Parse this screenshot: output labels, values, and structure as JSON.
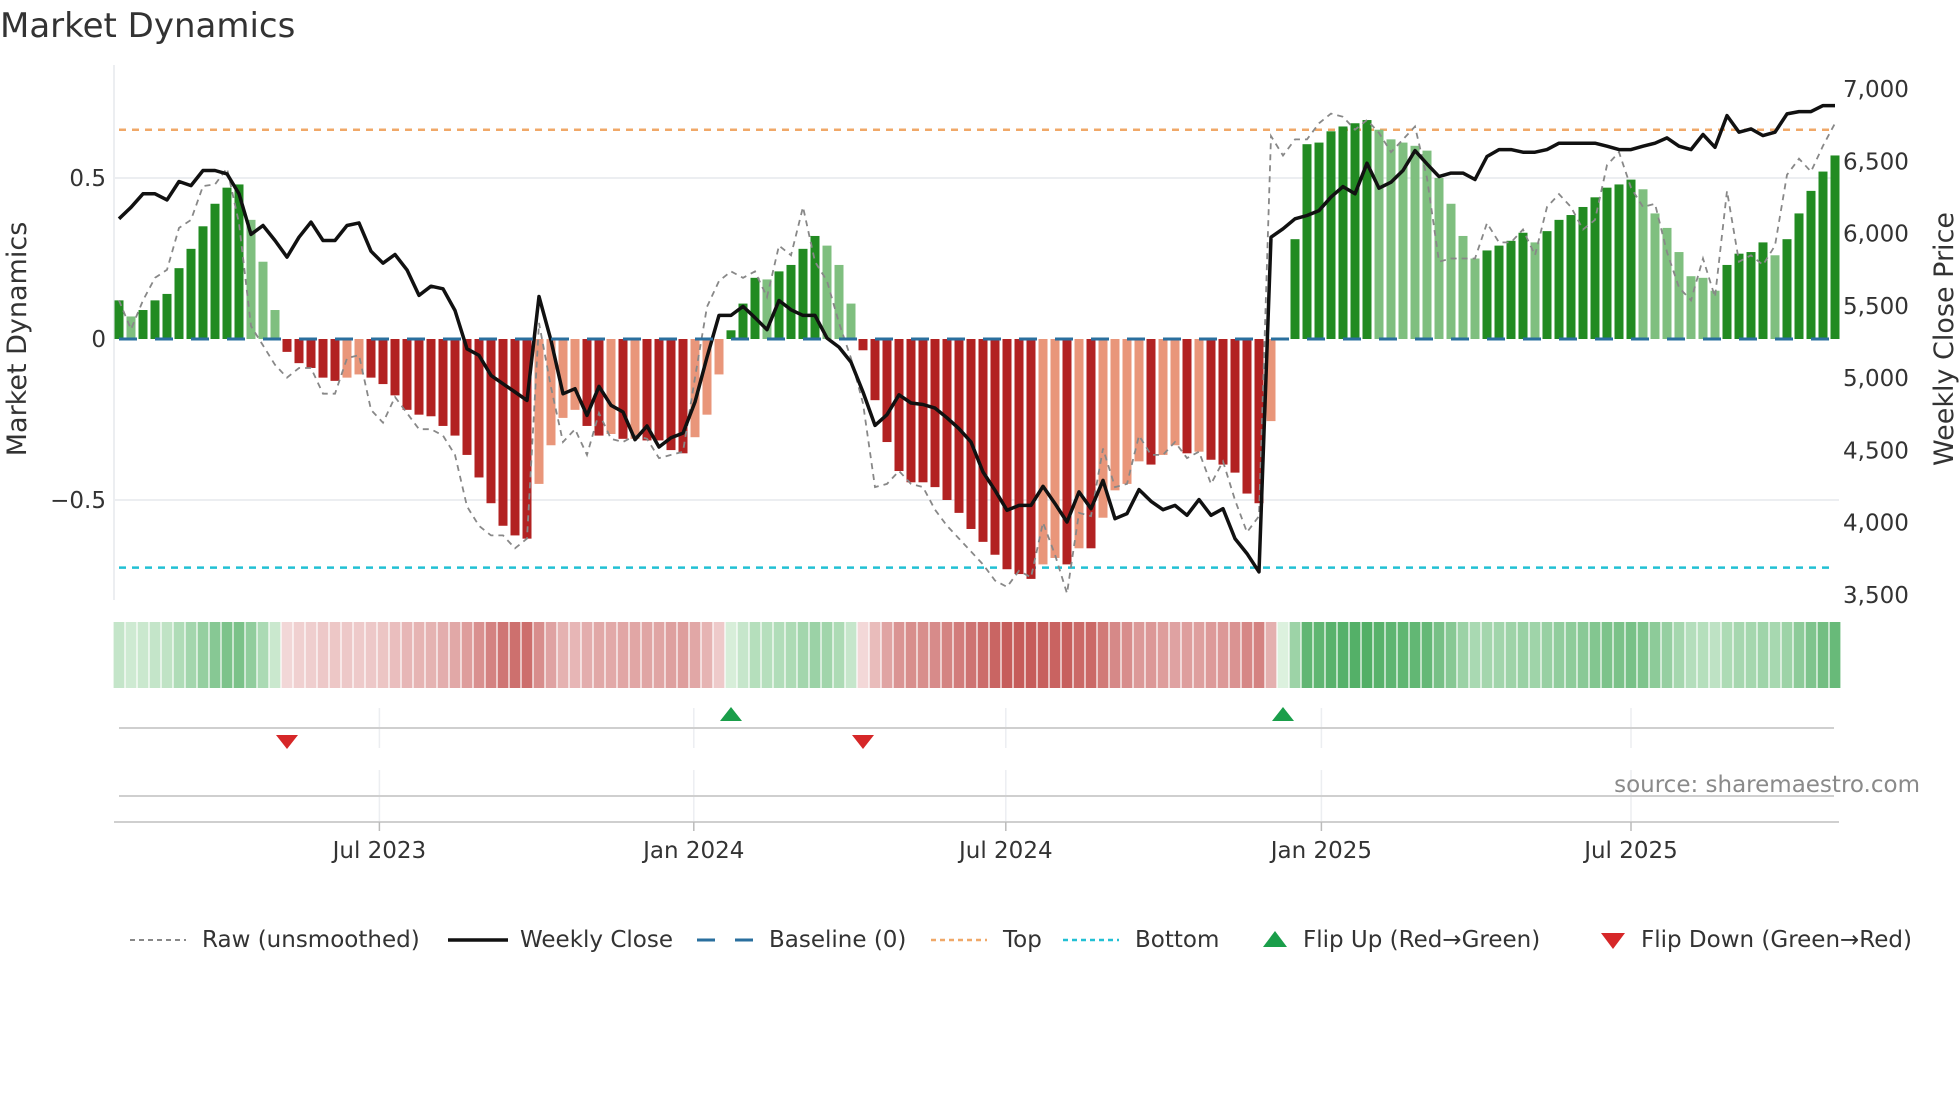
{
  "chart_data": {
    "type": "bar",
    "title": "Market Dynamics",
    "ylabel_left": "Market Dynamics",
    "ylabel_right": "Weekly Close Price",
    "ylim_left": [
      -0.8,
      0.8
    ],
    "ylim_right": [
      3500,
      7000
    ],
    "left_ticks": [
      {
        "v": 0.5,
        "label": "0.5"
      },
      {
        "v": 0,
        "label": "0"
      },
      {
        "v": -0.5,
        "label": "−0.5"
      }
    ],
    "right_ticks": [
      {
        "v": 7000,
        "label": "7,000"
      },
      {
        "v": 6500,
        "label": "6,500"
      },
      {
        "v": 6000,
        "label": "6,000"
      },
      {
        "v": 5500,
        "label": "5,500"
      },
      {
        "v": 5000,
        "label": "5,000"
      },
      {
        "v": 4500,
        "label": "4,500"
      },
      {
        "v": 4000,
        "label": "4,000"
      },
      {
        "v": 3500,
        "label": "3,500"
      }
    ],
    "x_ticks": [
      {
        "week": 21.7,
        "label": "Jul 2023"
      },
      {
        "week": 47.9,
        "label": "Jan 2024"
      },
      {
        "week": 73.9,
        "label": "Jul 2024"
      },
      {
        "week": 100.2,
        "label": "Jan 2025"
      },
      {
        "week": 126.0,
        "label": "Jul 2025"
      }
    ],
    "top_level": 0.65,
    "bottom_level": -0.71,
    "baseline": 0,
    "values": [
      0.12,
      0.07,
      0.09,
      0.12,
      0.14,
      0.22,
      0.28,
      0.35,
      0.42,
      0.47,
      0.48,
      0.37,
      0.24,
      0.09,
      -0.04,
      -0.075,
      -0.09,
      -0.12,
      -0.13,
      -0.12,
      -0.11,
      -0.12,
      -0.14,
      -0.175,
      -0.22,
      -0.235,
      -0.24,
      -0.27,
      -0.3,
      -0.36,
      -0.43,
      -0.51,
      -0.58,
      -0.61,
      -0.62,
      -0.45,
      -0.33,
      -0.245,
      -0.22,
      -0.27,
      -0.3,
      -0.295,
      -0.31,
      -0.31,
      -0.315,
      -0.315,
      -0.345,
      -0.355,
      -0.305,
      -0.235,
      -0.11,
      0.027,
      0.11,
      0.19,
      0.185,
      0.21,
      0.23,
      0.28,
      0.32,
      0.29,
      0.23,
      0.11,
      -0.035,
      -0.19,
      -0.32,
      -0.41,
      -0.445,
      -0.445,
      -0.46,
      -0.5,
      -0.54,
      -0.59,
      -0.63,
      -0.67,
      -0.715,
      -0.73,
      -0.745,
      -0.7,
      -0.68,
      -0.7,
      -0.65,
      -0.65,
      -0.555,
      -0.47,
      -0.45,
      -0.38,
      -0.39,
      -0.36,
      -0.33,
      -0.355,
      -0.35,
      -0.375,
      -0.39,
      -0.415,
      -0.48,
      -0.51,
      -0.255,
      0,
      0.31,
      0.605,
      0.61,
      0.645,
      0.66,
      0.67,
      0.68,
      0.65,
      0.62,
      0.61,
      0.6,
      0.585,
      0.5,
      0.42,
      0.32,
      0.25,
      0.275,
      0.29,
      0.305,
      0.33,
      0.3,
      0.335,
      0.37,
      0.385,
      0.41,
      0.44,
      0.47,
      0.48,
      0.495,
      0.465,
      0.39,
      0.345,
      0.27,
      0.195,
      0.19,
      0.15,
      0.23,
      0.265,
      0.27,
      0.3,
      0.26,
      0.31,
      0.39,
      0.46,
      0.52,
      0.57
    ],
    "strong": [
      1,
      0,
      1,
      1,
      1,
      1,
      1,
      1,
      1,
      1,
      1,
      0,
      0,
      0,
      1,
      1,
      1,
      1,
      1,
      0,
      0,
      1,
      1,
      1,
      1,
      1,
      1,
      1,
      1,
      1,
      1,
      1,
      1,
      1,
      1,
      0,
      0,
      0,
      0,
      1,
      1,
      0,
      1,
      0,
      1,
      1,
      1,
      1,
      0,
      0,
      0,
      1,
      1,
      1,
      0,
      1,
      1,
      1,
      1,
      0,
      0,
      0,
      1,
      1,
      1,
      1,
      1,
      1,
      1,
      1,
      1,
      1,
      1,
      1,
      1,
      1,
      1,
      0,
      0,
      1,
      0,
      1,
      0,
      0,
      0,
      0,
      1,
      0,
      0,
      1,
      0,
      1,
      1,
      1,
      1,
      1,
      0,
      0,
      1,
      1,
      1,
      1,
      1,
      1,
      1,
      0,
      0,
      0,
      0,
      0,
      0,
      0,
      0,
      0,
      1,
      1,
      1,
      1,
      0,
      1,
      1,
      1,
      1,
      1,
      1,
      1,
      1,
      0,
      0,
      0,
      0,
      0,
      0,
      0,
      1,
      1,
      1,
      1,
      0,
      1,
      1,
      1,
      1,
      1
    ],
    "raw": [
      0.12,
      0.03,
      0.12,
      0.19,
      0.215,
      0.345,
      0.37,
      0.475,
      0.48,
      0.53,
      0.36,
      0.04,
      -0.02,
      -0.08,
      -0.12,
      -0.09,
      -0.09,
      -0.17,
      -0.17,
      -0.06,
      -0.05,
      -0.22,
      -0.26,
      -0.18,
      -0.23,
      -0.28,
      -0.28,
      -0.3,
      -0.36,
      -0.52,
      -0.58,
      -0.61,
      -0.61,
      -0.65,
      -0.62,
      0.05,
      -0.15,
      -0.32,
      -0.28,
      -0.36,
      -0.23,
      -0.31,
      -0.32,
      -0.3,
      -0.31,
      -0.37,
      -0.36,
      -0.35,
      -0.12,
      0.1,
      0.18,
      0.21,
      0.19,
      0.21,
      0.13,
      0.29,
      0.26,
      0.41,
      0.24,
      0.18,
      0.05,
      -0.06,
      -0.2,
      -0.46,
      -0.45,
      -0.41,
      -0.45,
      -0.46,
      -0.53,
      -0.58,
      -0.62,
      -0.66,
      -0.7,
      -0.75,
      -0.77,
      -0.72,
      -0.74,
      -0.57,
      -0.67,
      -0.79,
      -0.54,
      -0.55,
      -0.34,
      -0.46,
      -0.45,
      -0.3,
      -0.36,
      -0.36,
      -0.32,
      -0.37,
      -0.35,
      -0.45,
      -0.38,
      -0.5,
      -0.6,
      -0.55,
      0.63,
      0.57,
      0.62,
      0.62,
      0.67,
      0.7,
      0.69,
      0.65,
      0.68,
      0.64,
      0.58,
      0.62,
      0.66,
      0.5,
      0.24,
      0.25,
      0.25,
      0.25,
      0.36,
      0.3,
      0.3,
      0.34,
      0.26,
      0.41,
      0.45,
      0.41,
      0.34,
      0.37,
      0.54,
      0.58,
      0.47,
      0.41,
      0.42,
      0.27,
      0.16,
      0.12,
      0.25,
      0.13,
      0.46,
      0.24,
      0.26,
      0.23,
      0.29,
      0.51,
      0.56,
      0.52,
      0.6,
      0.67
    ],
    "close": [
      6102,
      6182,
      6275,
      6275,
      6233,
      6360,
      6332,
      6436,
      6436,
      6413,
      6275,
      5994,
      6056,
      5952,
      5837,
      5975,
      6079,
      5952,
      5952,
      6056,
      6074,
      5878,
      5795,
      5855,
      5749,
      5572,
      5636,
      5618,
      5468,
      5203,
      5157,
      5019,
      4961,
      4904,
      4846,
      5565,
      5261,
      4892,
      4927,
      4742,
      4943,
      4812,
      4766,
      4574,
      4669,
      4524,
      4588,
      4620,
      4835,
      5145,
      5434,
      5434,
      5496,
      5418,
      5335,
      5537,
      5473,
      5434,
      5434,
      5277,
      5215,
      5111,
      4904,
      4673,
      4747,
      4885,
      4828,
      4818,
      4793,
      4726,
      4650,
      4558,
      4351,
      4224,
      4086,
      4120,
      4120,
      4252,
      4132,
      4005,
      4213,
      4097,
      4293,
      4028,
      4063,
      4229,
      4148,
      4090,
      4120,
      4051,
      4160,
      4051,
      4097,
      3890,
      3786,
      3660,
      5975,
      6033,
      6102,
      6125,
      6159,
      6252,
      6325,
      6275,
      6487,
      6314,
      6355,
      6436,
      6574,
      6482,
      6394,
      6418,
      6418,
      6374,
      6533,
      6581,
      6581,
      6563,
      6563,
      6581,
      6625,
      6625,
      6625,
      6625,
      6604,
      6581,
      6581,
      6604,
      6625,
      6662,
      6604,
      6581,
      6685,
      6597,
      6816,
      6701,
      6724,
      6678,
      6701,
      6828,
      6844,
      6844,
      6885,
      6885
    ],
    "flips": [
      {
        "week": 14,
        "dir": "down"
      },
      {
        "week": 51,
        "dir": "up"
      },
      {
        "week": 62,
        "dir": "down"
      },
      {
        "week": 97,
        "dir": "up"
      }
    ],
    "colors": {
      "strong_up": "#228b22",
      "weak_up": "#7fbf7f",
      "strong_down": "#b22222",
      "weak_down": "#e9967a",
      "close": "#111111",
      "raw": "#888888",
      "baseline": "#2a6f9e",
      "top": "#f0a868",
      "bottom": "#22c0d4",
      "flip_up": "#1a9e4a",
      "flip_down": "#d62728",
      "grid": "#eceef1"
    },
    "legend": [
      {
        "key": "raw",
        "label": "Raw (unsmoothed)"
      },
      {
        "key": "close",
        "label": "Weekly Close"
      },
      {
        "key": "baseline",
        "label": "Baseline (0)"
      },
      {
        "key": "top",
        "label": "Top"
      },
      {
        "key": "bottom",
        "label": "Bottom"
      },
      {
        "key": "flip_up",
        "label": "Flip Up (Red→Green)"
      },
      {
        "key": "flip_down",
        "label": "Flip Down (Green→Red)"
      }
    ],
    "source": "source: sharemaestro.com"
  }
}
